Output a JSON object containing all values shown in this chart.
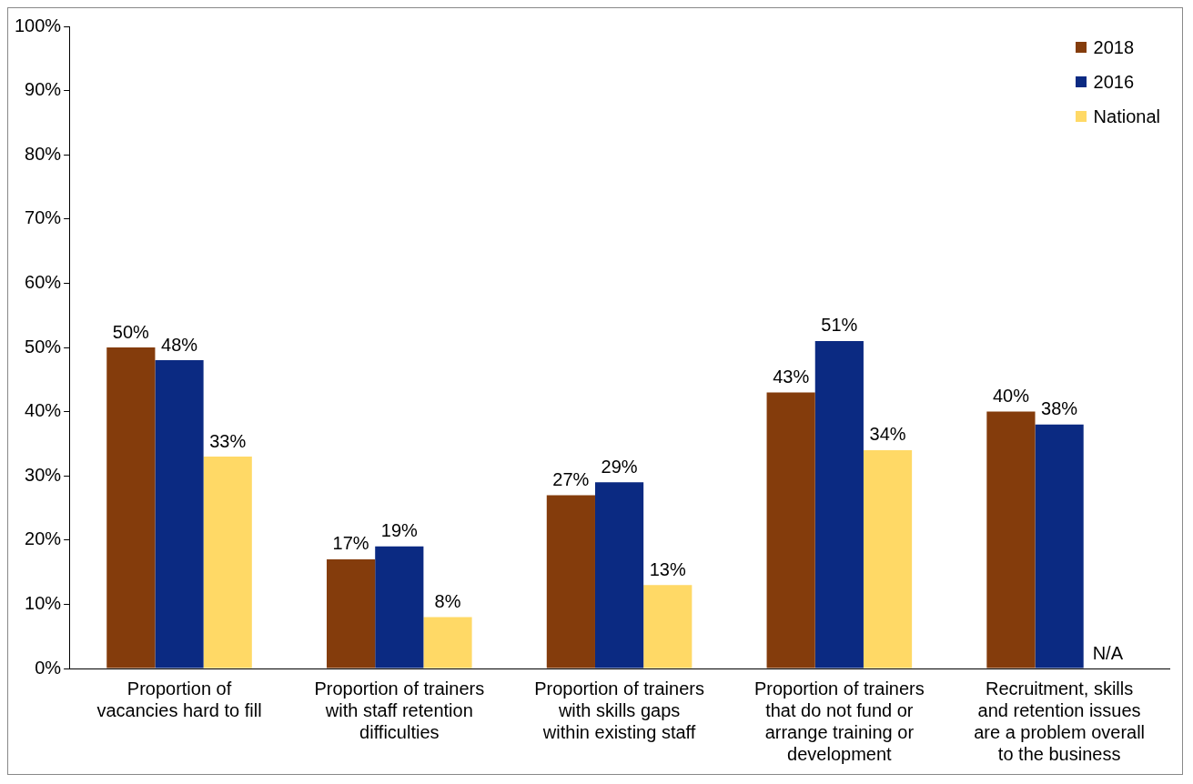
{
  "chart_data": {
    "type": "bar",
    "categories": [
      "Proportion of vacancies hard to fill",
      "Proportion of trainers with staff retention difficulties",
      "Proportion of trainers with skills gaps within existing staff",
      "Proportion of trainers that do not fund or arrange training or development",
      "Recruitment, skills and retention issues are a problem overall to the business"
    ],
    "series": [
      {
        "name": "2018",
        "color": "#843c0c",
        "values": [
          50,
          17,
          27,
          43,
          40
        ],
        "value_labels": [
          "50%",
          "17%",
          "27%",
          "43%",
          "40%"
        ]
      },
      {
        "name": "2016",
        "color": "#0b2a82",
        "values": [
          48,
          19,
          29,
          51,
          38
        ],
        "value_labels": [
          "48%",
          "19%",
          "29%",
          "51%",
          "38%"
        ]
      },
      {
        "name": "National",
        "color": "#ffd966",
        "values": [
          33,
          8,
          13,
          34,
          null
        ],
        "value_labels": [
          "33%",
          "8%",
          "13%",
          "34%",
          "N/A"
        ]
      }
    ],
    "ylim": [
      0,
      100
    ],
    "yticks": [
      {
        "value": 0,
        "label": "0%"
      },
      {
        "value": 10,
        "label": "10%"
      },
      {
        "value": 20,
        "label": "20%"
      },
      {
        "value": 30,
        "label": "30%"
      },
      {
        "value": 40,
        "label": "40%"
      },
      {
        "value": 50,
        "label": "50%"
      },
      {
        "value": 60,
        "label": "60%"
      },
      {
        "value": 70,
        "label": "70%"
      },
      {
        "value": 80,
        "label": "80%"
      },
      {
        "value": 90,
        "label": "90%"
      },
      {
        "value": 100,
        "label": "100%"
      }
    ],
    "grid": false,
    "legend": "top right"
  }
}
